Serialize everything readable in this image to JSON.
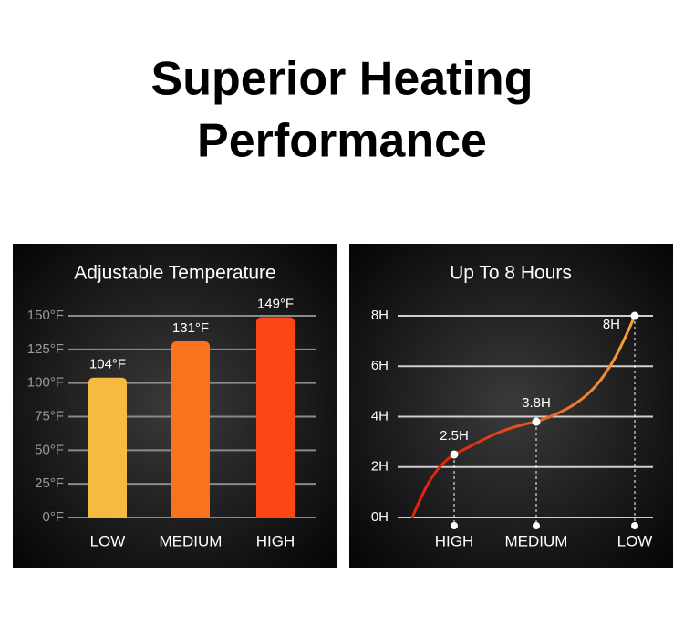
{
  "title": [
    "Superior Heating",
    "Performance"
  ],
  "chart_data": [
    {
      "type": "bar",
      "title": "Adjustable Temperature",
      "categories": [
        "LOW",
        "MEDIUM",
        "HIGH"
      ],
      "values": [
        104,
        131,
        149
      ],
      "value_labels": [
        "104°F",
        "131°F",
        "149°F"
      ],
      "colors": [
        "#f6ba3e",
        "#f9731d",
        "#fb4615"
      ],
      "ylim": [
        0,
        150
      ],
      "yticks": [
        {
          "value": 0,
          "label": "0°F"
        },
        {
          "value": 25,
          "label": "25°F"
        },
        {
          "value": 50,
          "label": "50°F"
        },
        {
          "value": 75,
          "label": "75°F"
        },
        {
          "value": 100,
          "label": "100°F"
        },
        {
          "value": 125,
          "label": "125°F"
        },
        {
          "value": 150,
          "label": "150°F"
        }
      ],
      "grid": true
    },
    {
      "type": "line",
      "title": "Up To 8 Hours",
      "categories": [
        "HIGH",
        "MEDIUM",
        "LOW"
      ],
      "values": [
        2.5,
        3.8,
        8
      ],
      "value_labels": [
        "2.5H",
        "3.8H",
        "8H"
      ],
      "gradient": [
        "#e0240e",
        "#f9a43a"
      ],
      "ylim": [
        0,
        8
      ],
      "yticks": [
        {
          "value": 0,
          "label": "0H"
        },
        {
          "value": 2,
          "label": "2H"
        },
        {
          "value": 4,
          "label": "4H"
        },
        {
          "value": 6,
          "label": "6H"
        },
        {
          "value": 8,
          "label": "8H"
        }
      ],
      "grid": true
    }
  ]
}
